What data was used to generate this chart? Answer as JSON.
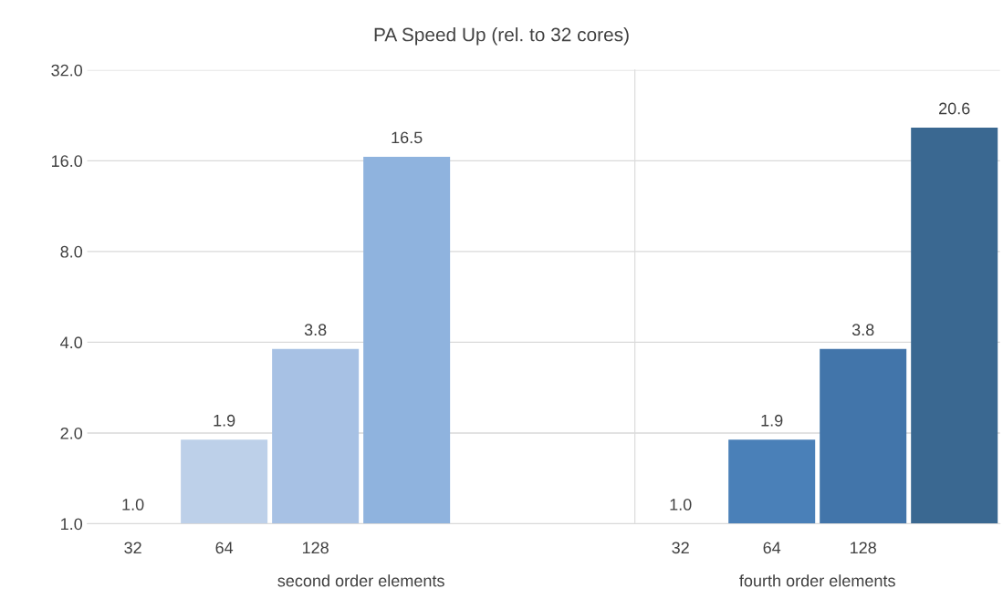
{
  "chart_data": [
    {
      "type": "bar",
      "title": "PA Speed Up (rel. to 32 cores)",
      "xlabel": "second order elements",
      "categories": [
        "32",
        "64",
        "128",
        null,
        null,
        null
      ],
      "values": [
        1.0,
        1.9,
        3.8,
        16.5,
        null,
        null
      ],
      "colors": [
        "#d3e0f1",
        "#bdd0e9",
        "#a7c1e4",
        "#8fb3de",
        "#8fb3de",
        "#8fb3de"
      ],
      "value_labels": [
        "1.0",
        "1.9",
        "3.8",
        "16.5",
        null,
        null
      ],
      "log": true,
      "grid": "y",
      "ylim": [
        1,
        32
      ],
      "yticks": [
        {
          "value": 1,
          "label": "1.0"
        },
        {
          "value": 2,
          "label": "2.0"
        },
        {
          "value": 4,
          "label": "4.0"
        },
        {
          "value": 8,
          "label": "8.0"
        },
        {
          "value": 16,
          "label": "16.0"
        },
        {
          "value": 32,
          "label": "32.0"
        }
      ]
    },
    {
      "type": "bar",
      "xlabel": "fourth order elements",
      "categories": [
        "32",
        "64",
        "128",
        null
      ],
      "values": [
        1.0,
        1.9,
        3.8,
        20.6
      ],
      "colors": [
        "#5a8cc2",
        "#4a80b8",
        "#4275aa",
        "#3a6891"
      ],
      "value_labels": [
        "1.0",
        "1.9",
        "3.8",
        "20.6"
      ],
      "log": true,
      "grid": "y",
      "ylim": [
        1,
        32
      ],
      "tick_labels": "x",
      "yticks": [
        {
          "value": 1,
          "label": null
        },
        {
          "value": 2,
          "label": null
        },
        {
          "value": 4,
          "label": null
        },
        {
          "value": 8,
          "label": null
        },
        {
          "value": 16,
          "label": null
        },
        {
          "value": 32,
          "label": null
        }
      ]
    }
  ]
}
